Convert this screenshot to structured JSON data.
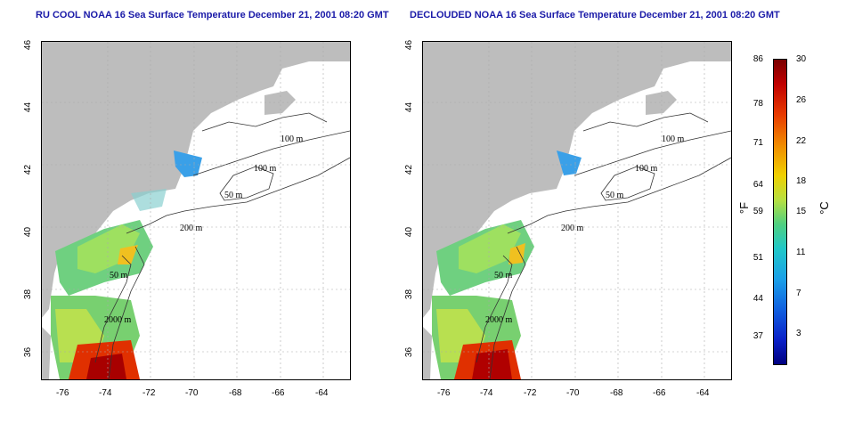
{
  "panels": [
    {
      "title": "RU COOL NOAA 16 Sea Surface Temperature December 21, 2001 08:20 GMT"
    },
    {
      "title": "DECLOUDED NOAA 16 Sea Surface Temperature December 21, 2001 08:20 GMT"
    }
  ],
  "axes": {
    "lon_labels": [
      "-76",
      "-74",
      "-72",
      "-70",
      "-68",
      "-66",
      "-64"
    ],
    "lat_labels": [
      "46",
      "44",
      "42",
      "40",
      "38",
      "36"
    ]
  },
  "contours": [
    "100 m",
    "100 m",
    "50 m",
    "200 m",
    "50 m",
    "2000 m"
  ],
  "colorbar": {
    "fahrenheit_label": "°F",
    "celsius_label": "°C",
    "fahrenheit_ticks": [
      "86",
      "78",
      "71",
      "64",
      "59",
      "51",
      "44",
      "37"
    ],
    "celsius_ticks": [
      "30",
      "26",
      "22",
      "18",
      "15",
      "11",
      "7",
      "3"
    ]
  }
}
